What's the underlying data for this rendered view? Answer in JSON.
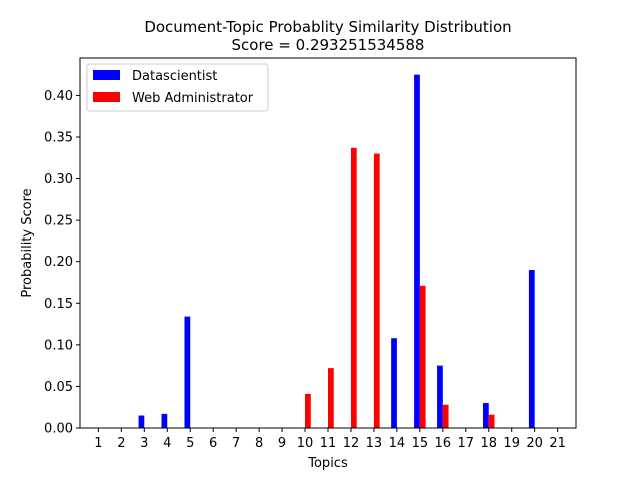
{
  "chart_data": {
    "type": "bar",
    "title": "Document-Topic Probablity Similarity Distribution",
    "subtitle": "Score = 0.293251534588",
    "xlabel": "Topics",
    "ylabel": "Probability Score",
    "ylim": [
      0,
      0.445
    ],
    "grid": false,
    "legend_position": "top-left",
    "yticks": [
      "0.00",
      "0.05",
      "0.10",
      "0.15",
      "0.20",
      "0.25",
      "0.30",
      "0.35",
      "0.40"
    ],
    "categories": [
      "1",
      "2",
      "3",
      "4",
      "5",
      "6",
      "7",
      "8",
      "9",
      "10",
      "11",
      "12",
      "13",
      "14",
      "15",
      "16",
      "17",
      "18",
      "19",
      "20",
      "21"
    ],
    "series": [
      {
        "name": "Datascientist",
        "color": "#0000ff",
        "values": [
          0,
          0,
          0.015,
          0.017,
          0.134,
          0,
          0,
          0,
          0,
          0,
          0,
          0,
          0,
          0.108,
          0.425,
          0.075,
          0,
          0.03,
          0,
          0.19,
          0
        ]
      },
      {
        "name": "Web Administrator",
        "color": "#ff0000",
        "values": [
          0,
          0,
          0,
          0,
          0,
          0,
          0,
          0,
          0,
          0.041,
          0.072,
          0.337,
          0.33,
          0,
          0.171,
          0.028,
          0,
          0.016,
          0,
          0,
          0
        ]
      }
    ]
  }
}
